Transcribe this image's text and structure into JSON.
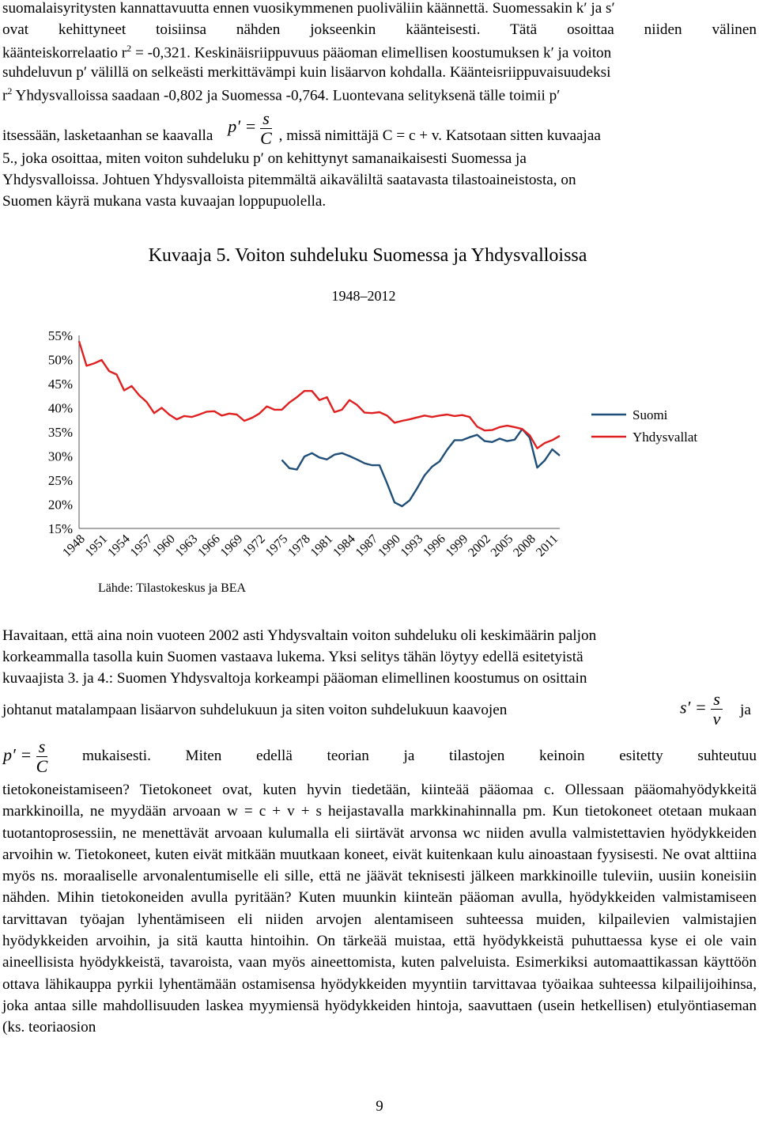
{
  "paragraph1": {
    "line1": "suomalaisyritysten kannattavuutta ennen vuosikymmenen puoliväliin käännettä. Suomessakin k′ ja s′",
    "line2": "ovat kehittyneet toisiinsa nähden jokseenkin käänteisesti. Tätä osoittaa niiden välinen",
    "line3a": "käänteiskorrelaatio r",
    "line3b": " = -0,321. Keskinäisriippuvuus pääoman elimellisen koostumuksen k′ ja voiton",
    "line4": "suhdeluvun p′ välillä on selkeästi merkittävämpi kuin lisäarvon kohdalla. Käänteisriippuvaisuudeksi",
    "line5a": "r",
    "line5b": " Yhdysvalloissa saadaan -0,802 ja Suomessa -0,764. Luontevana selityksenä tälle toimii p′",
    "line6a": "itsessään, lasketaanhan se kaavalla",
    "line6b": ", missä nimittäjä C = c + v. Katsotaan sitten kuvaajaa",
    "line7": "5., joka osoittaa, miten voiton suhdeluku p′ on kehittynyt samanaikaisesti Suomessa ja",
    "line8": "Yhdysvalloissa. Johtuen Yhdysvalloista pitemmältä aikaväliltä saatavasta tilastoaineistosta, on",
    "line9": "Suomen käyrä mukana vasta kuvaajan loppupuolella.",
    "sup": "2"
  },
  "formula_p": {
    "lhs": "p′ =",
    "num": "s",
    "den": "C"
  },
  "formula_s": {
    "lhs": "s′ =",
    "num": "s",
    "den": "v"
  },
  "paragraph2": {
    "line1": "Havaitaan, että aina noin vuoteen 2002 asti Yhdysvaltain voiton suhdeluku oli keskimäärin paljon",
    "line2": "korkeammalla tasolla kuin Suomen vastaava lukema. Yksi selitys tähän löytyy edellä esitetyistä",
    "line3": "kuvaajista 3. ja 4.: Suomen Yhdysvaltoja korkeampi pääoman elimellinen koostumus on osittain",
    "line4a": "johtanut matalampaan lisäarvon suhdelukuun ja siten voiton suhdelukuun kaavojen",
    "line4b": "ja",
    "line5": "mukaisesti. Miten edellä teorian ja tilastojen keinoin esitetty suhteutuu",
    "body": "tietokoneistamiseen? Tietokoneet ovat, kuten hyvin tiedetään, kiinteää pääomaa c. Ollessaan pääomahyödykkeitä markkinoilla, ne myydään arvoaan w = c + v + s heijastavalla markkinahinnalla pm. Kun tietokoneet otetaan mukaan tuotantoprosessiin, ne menettävät arvoaan kulumalla eli siirtävät arvonsa wc niiden avulla valmistettavien hyödykkeiden arvoihin w. Tietokoneet, kuten eivät mitkään muutkaan koneet, eivät kuitenkaan kulu ainoastaan fyysisesti. Ne ovat alttiina myös ns. moraaliselle arvonalentumiselle eli sille, että ne jäävät teknisesti jälkeen markkinoille tuleviin, uusiin koneisiin nähden. Mihin tietokoneiden avulla pyritään? Kuten muunkin kiinteän pääoman avulla, hyödykkeiden valmistamiseen tarvittavan työajan lyhentämiseen eli niiden arvojen alentamiseen suhteessa muiden, kilpailevien valmistajien hyödykkeiden arvoihin, ja sitä kautta hintoihin. On tärkeää muistaa, että hyödykkeistä puhuttaessa kyse ei ole vain aineellisista hyödykkeistä, tavaroista, vaan myös aineettomista, kuten palveluista. Esimerkiksi automaattikassan käyttöön ottava lähikauppa pyrkii lyhentämään ostamisensa hyödykkeiden myyntiin tarvittavaa työaikaa suhteessa kilpailijoihinsa, joka antaa sille mahdollisuuden laskea myymiensä hyödykkeiden hintoja, saavuttaen (usein hetkellisen) etulyöntiaseman (ks. teoriaosion"
  },
  "chart": {
    "title": "Kuvaaja 5. Voiton suhdeluku Suomessa ja Yhdysvalloissa",
    "subtitle": "1948–2012",
    "source": "Lähde: Tilastokeskus ja BEA"
  },
  "page_number": "9",
  "chart_data": {
    "type": "line",
    "title": "Kuvaaja 5. Voiton suhdeluku Suomessa ja Yhdysvalloissa",
    "subtitle": "1948–2012",
    "ylim": [
      15,
      55
    ],
    "yticks": [
      "55%",
      "50%",
      "45%",
      "40%",
      "35%",
      "30%",
      "25%",
      "20%",
      "15%"
    ],
    "xticks": [
      "1948",
      "1951",
      "1954",
      "1957",
      "1960",
      "1963",
      "1966",
      "1969",
      "1972",
      "1975",
      "1978",
      "1981",
      "1984",
      "1987",
      "1990",
      "1993",
      "1996",
      "1999",
      "2002",
      "2005",
      "2008",
      "2011"
    ],
    "legend_position": "right",
    "grid": false,
    "series": [
      {
        "name": "Suomi",
        "color": "#1f4e79",
        "x": [
          1975,
          1976,
          1977,
          1978,
          1979,
          1980,
          1981,
          1982,
          1983,
          1984,
          1985,
          1986,
          1987,
          1988,
          1989,
          1990,
          1991,
          1992,
          1993,
          1994,
          1995,
          1996,
          1997,
          1998,
          1999,
          2000,
          2001,
          2002,
          2003,
          2004,
          2005,
          2006,
          2007,
          2008,
          2009,
          2010,
          2011,
          2012
        ],
        "y": [
          29.2,
          27.5,
          27.2,
          29.9,
          30.6,
          29.7,
          29.3,
          30.3,
          30.6,
          30.0,
          29.3,
          28.5,
          28.1,
          28.1,
          24.4,
          20.4,
          19.6,
          20.8,
          23.3,
          26.0,
          27.8,
          28.9,
          31.3,
          33.3,
          33.3,
          33.9,
          34.4,
          33.1,
          32.9,
          33.6,
          33.1,
          33.4,
          35.6,
          33.8,
          27.6,
          29.1,
          31.4,
          30.1
        ]
      },
      {
        "name": "Yhdysvallat",
        "color": "#e02020",
        "x": [
          1948,
          1949,
          1950,
          1951,
          1952,
          1953,
          1954,
          1955,
          1956,
          1957,
          1958,
          1959,
          1960,
          1961,
          1962,
          1963,
          1964,
          1965,
          1966,
          1967,
          1968,
          1969,
          1970,
          1971,
          1972,
          1973,
          1974,
          1975,
          1976,
          1977,
          1978,
          1979,
          1980,
          1981,
          1982,
          1983,
          1984,
          1985,
          1986,
          1987,
          1988,
          1989,
          1990,
          1991,
          1992,
          1993,
          1994,
          1995,
          1996,
          1997,
          1998,
          1999,
          2000,
          2001,
          2002,
          2003,
          2004,
          2005,
          2006,
          2007,
          2008,
          2009,
          2010,
          2011,
          2012
        ],
        "y": [
          53.8,
          48.7,
          49.2,
          49.9,
          47.6,
          46.9,
          43.6,
          44.5,
          42.6,
          41.2,
          38.9,
          40.0,
          38.6,
          37.6,
          38.3,
          38.1,
          38.6,
          39.2,
          39.3,
          38.4,
          38.8,
          38.6,
          37.3,
          37.9,
          38.8,
          40.3,
          39.6,
          39.6,
          41.1,
          42.2,
          43.5,
          43.5,
          41.6,
          42.2,
          39.1,
          39.6,
          41.6,
          40.6,
          39.0,
          38.9,
          39.1,
          38.4,
          36.9,
          37.3,
          37.6,
          38.0,
          38.4,
          38.1,
          38.4,
          38.6,
          38.3,
          38.5,
          38.1,
          36.1,
          35.3,
          35.4,
          36.0,
          36.3,
          36.0,
          35.6,
          34.3,
          31.6,
          32.7,
          33.3,
          34.2
        ]
      }
    ]
  }
}
